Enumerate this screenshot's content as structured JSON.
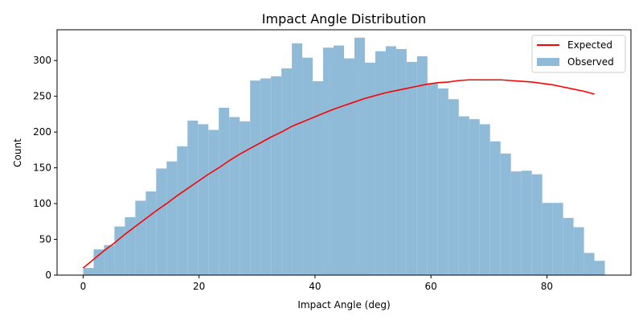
{
  "chart_data": {
    "type": "bar",
    "title": "Impact Angle Distribution",
    "xlabel": "Impact Angle (deg)",
    "ylabel": "Count",
    "xlim": [
      -4.5,
      94.5
    ],
    "ylim": [
      0,
      343
    ],
    "xticks": [
      0,
      20,
      40,
      60,
      80
    ],
    "yticks": [
      0,
      50,
      100,
      150,
      200,
      250,
      300
    ],
    "grid": false,
    "legend": {
      "placement": "top-right",
      "entries": [
        "Expected",
        "Observed"
      ]
    },
    "bin_width": 1.8,
    "bins": {
      "name": "Observed",
      "color": "#8fbbd9",
      "x_start": [
        0,
        1.8,
        3.6,
        5.4,
        7.2,
        9.0,
        10.8,
        12.6,
        14.4,
        16.2,
        18.0,
        19.8,
        21.6,
        23.4,
        25.2,
        27.0,
        28.8,
        30.6,
        32.4,
        34.2,
        36.0,
        37.8,
        39.6,
        41.4,
        43.2,
        45.0,
        46.8,
        48.6,
        50.4,
        52.2,
        54.0,
        55.8,
        57.6,
        59.4,
        61.2,
        63.0,
        64.8,
        66.6,
        68.4,
        70.2,
        72.0,
        73.8,
        75.6,
        77.4,
        79.2,
        81.0,
        82.8,
        84.6,
        86.4,
        88.2
      ],
      "counts": [
        10,
        36,
        42,
        68,
        81,
        104,
        117,
        149,
        159,
        180,
        216,
        211,
        203,
        234,
        221,
        215,
        272,
        275,
        278,
        289,
        324,
        304,
        271,
        318,
        321,
        303,
        332,
        297,
        313,
        320,
        316,
        298,
        306,
        268,
        261,
        246,
        222,
        218,
        211,
        187,
        170,
        145,
        146,
        141,
        101,
        101,
        80,
        67,
        31,
        20
      ]
    },
    "series": [
      {
        "name": "Expected",
        "color": "#ff0000",
        "x": [
          0,
          1.8,
          3.6,
          5.4,
          7.2,
          9.0,
          10.8,
          12.6,
          14.4,
          16.2,
          18.0,
          19.8,
          21.6,
          23.4,
          25.2,
          27.0,
          28.8,
          30.6,
          32.4,
          34.2,
          36.0,
          37.8,
          39.6,
          41.4,
          43.2,
          45.0,
          46.8,
          48.6,
          50.4,
          52.2,
          54.0,
          55.8,
          57.6,
          59.4,
          61.2,
          63.0,
          64.8,
          66.6,
          68.4,
          70.2,
          72.0,
          73.8,
          75.6,
          77.4,
          79.2,
          81.0,
          82.8,
          84.6,
          86.4,
          88.2
        ],
        "values": [
          10,
          22,
          34,
          45,
          57,
          68,
          79,
          90,
          100,
          111,
          121,
          131,
          141,
          150,
          160,
          169,
          177,
          185,
          193,
          200,
          208,
          214,
          220,
          226,
          232,
          237,
          242,
          247,
          251,
          255,
          258,
          261,
          264,
          267,
          269,
          270,
          272,
          273,
          273,
          273,
          273,
          272,
          271,
          270,
          268,
          266,
          263,
          260,
          257,
          253
        ]
      }
    ]
  }
}
